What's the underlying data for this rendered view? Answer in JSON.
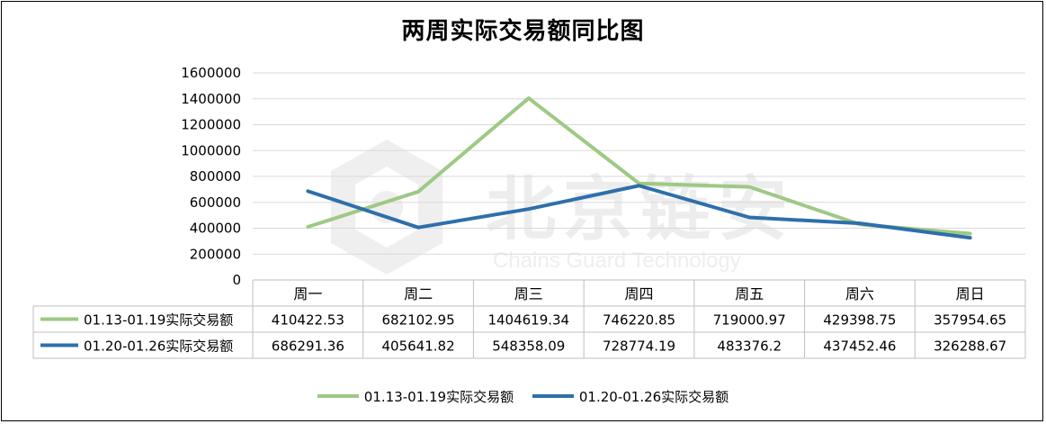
{
  "chart_data": {
    "type": "line",
    "title": "两周实际交易额同比图",
    "categories": [
      "周一",
      "周二",
      "周三",
      "周四",
      "周五",
      "周六",
      "周日"
    ],
    "ylim": [
      0,
      1600000
    ],
    "yticks": [
      "0",
      "200000",
      "400000",
      "600000",
      "800000",
      "1000000",
      "1200000",
      "1400000",
      "1600000"
    ],
    "grid": true,
    "legend_position": "bottom",
    "data_table": true,
    "series": [
      {
        "name": "01.13-01.19实际交易额",
        "color": "#9dc984",
        "values": [
          410422.53,
          682102.95,
          1404619.34,
          746220.85,
          719000.97,
          429398.75,
          357954.65
        ],
        "labels": [
          "410422.53",
          "682102.95",
          "1404619.34",
          "746220.85",
          "719000.97",
          "429398.75",
          "357954.65"
        ]
      },
      {
        "name": "01.20-01.26实际交易额",
        "color": "#2e6fab",
        "values": [
          686291.36,
          405641.82,
          548358.09,
          728774.19,
          483376.2,
          437452.46,
          326288.67
        ],
        "labels": [
          "686291.36",
          "405641.82",
          "548358.09",
          "728774.19",
          "483376.2",
          "437452.46",
          "326288.67"
        ]
      }
    ]
  },
  "watermark": {
    "text_cn": "北京链安",
    "text_en": "Chains Guard Technology"
  }
}
